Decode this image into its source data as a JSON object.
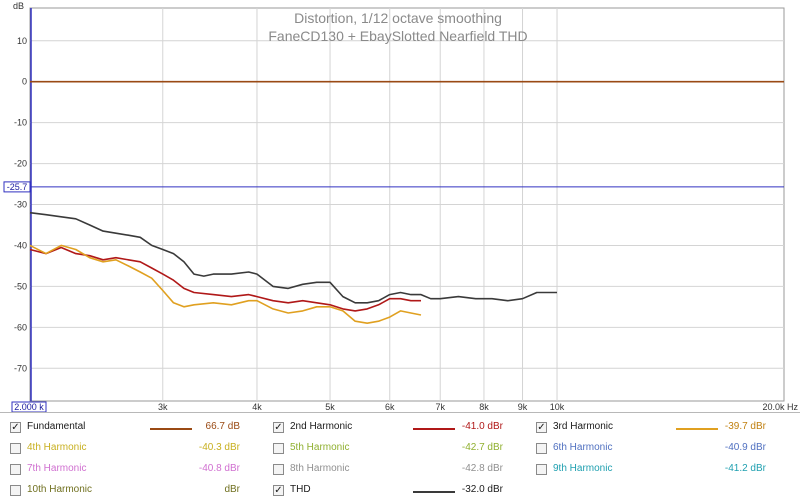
{
  "chart_data": {
    "type": "line",
    "title": "Distortion, 1/12 octave smoothing",
    "subtitle": "FaneCD130 + EbaySlotted Nearfield THD",
    "ylabel": "dB",
    "xlabel": "Hz",
    "x_scale": "log",
    "xlim": [
      2000,
      20000
    ],
    "ylim": [
      -78,
      18
    ],
    "x_ticks": [
      {
        "value": 3000,
        "label": "3k"
      },
      {
        "value": 4000,
        "label": "4k"
      },
      {
        "value": 5000,
        "label": "5k"
      },
      {
        "value": 6000,
        "label": "6k"
      },
      {
        "value": 7000,
        "label": "7k"
      },
      {
        "value": 8000,
        "label": "8k"
      },
      {
        "value": 9000,
        "label": "9k"
      },
      {
        "value": 10000,
        "label": "10k"
      }
    ],
    "x_start_label": "2.000 k",
    "x_end_label": "20.0k Hz",
    "y_ticks": [
      10,
      0,
      -10,
      -20,
      -30,
      -40,
      -50,
      -60,
      -70
    ],
    "cursor": {
      "y": -25.7,
      "label": "-25.7"
    },
    "grid": true,
    "series": [
      {
        "name": "Fundamental",
        "color": "#9a4a14",
        "x": [
          2000,
          20000
        ],
        "y": [
          0,
          0
        ]
      },
      {
        "name": "2nd Harmonic",
        "color": "#b01818",
        "x": [
          2000,
          2100,
          2200,
          2300,
          2400,
          2500,
          2600,
          2700,
          2800,
          2900,
          3000,
          3100,
          3200,
          3300,
          3500,
          3700,
          3900,
          4000,
          4200,
          4400,
          4600,
          4800,
          5000,
          5200,
          5400,
          5600,
          5800,
          6000,
          6200,
          6400,
          6600
        ],
        "y": [
          -41,
          -42,
          -40.5,
          -42,
          -42.5,
          -43.5,
          -43,
          -43.5,
          -44,
          -45.5,
          -47,
          -48.5,
          -50.5,
          -51.5,
          -52,
          -52.5,
          -52,
          -52.5,
          -53.5,
          -54,
          -53.5,
          -54,
          -54.5,
          -55.5,
          -56,
          -55.5,
          -54.5,
          -53,
          -53,
          -53.5,
          -53.5
        ]
      },
      {
        "name": "3rd Harmonic",
        "color": "#e0a020",
        "x": [
          2000,
          2100,
          2200,
          2300,
          2400,
          2500,
          2600,
          2700,
          2800,
          2900,
          3000,
          3100,
          3200,
          3300,
          3500,
          3700,
          3900,
          4000,
          4200,
          4400,
          4600,
          4800,
          5000,
          5200,
          5400,
          5600,
          5800,
          6000,
          6200,
          6400,
          6600
        ],
        "y": [
          -40,
          -42,
          -40,
          -41,
          -43,
          -44,
          -43.5,
          -45,
          -46.5,
          -48,
          -51,
          -54,
          -55,
          -54.5,
          -54,
          -54.5,
          -53.5,
          -53.5,
          -55.5,
          -56.5,
          -56,
          -55,
          -55,
          -56,
          -58.5,
          -59,
          -58.5,
          -57.5,
          -56,
          -56.5,
          -57
        ]
      },
      {
        "name": "THD",
        "color": "#3a3a3a",
        "x": [
          2000,
          2100,
          2200,
          2300,
          2400,
          2500,
          2600,
          2700,
          2800,
          2900,
          3000,
          3100,
          3200,
          3300,
          3400,
          3500,
          3700,
          3900,
          4000,
          4200,
          4400,
          4600,
          4800,
          5000,
          5200,
          5400,
          5600,
          5800,
          6000,
          6200,
          6400,
          6600,
          6800,
          7000,
          7400,
          7800,
          8200,
          8600,
          9000,
          9400,
          10000
        ],
        "y": [
          -32,
          -32.5,
          -33,
          -33.5,
          -35,
          -36.5,
          -37,
          -37.5,
          -38,
          -40,
          -41,
          -42,
          -44,
          -47,
          -47.5,
          -47,
          -47,
          -46.5,
          -47,
          -50,
          -50.5,
          -49.5,
          -49,
          -49,
          -52.5,
          -54,
          -54,
          -53.5,
          -52,
          -51.5,
          -52,
          -52,
          -53,
          -53,
          -52.5,
          -53,
          -53,
          -53.5,
          -53,
          -51.5,
          -51.5
        ]
      }
    ]
  },
  "legend": {
    "items": [
      {
        "label": "Fundamental",
        "checked": true,
        "value": "66.7 dB",
        "color": "#9a4a14",
        "show_line": true
      },
      {
        "label": "2nd Harmonic",
        "checked": true,
        "value": "-41.0 dBr",
        "color": "#b01818",
        "show_line": true
      },
      {
        "label": "3rd Harmonic",
        "checked": true,
        "value": "-39.7 dBr",
        "color": "#e0a020",
        "show_line": true
      },
      {
        "label": "4th Harmonic",
        "checked": false,
        "value": "-40.3 dBr",
        "color": "#c8b020",
        "show_line": false
      },
      {
        "label": "5th Harmonic",
        "checked": false,
        "value": "-42.7 dBr",
        "color": "#90b030",
        "show_line": false
      },
      {
        "label": "6th Harmonic",
        "checked": false,
        "value": "-40.9 dBr",
        "color": "#5070c0",
        "show_line": false
      },
      {
        "label": "7th Harmonic",
        "checked": false,
        "value": "-40.8 dBr",
        "color": "#d070d0",
        "show_line": false
      },
      {
        "label": "8th Harmonic",
        "checked": false,
        "value": "-42.8 dBr",
        "color": "#909090",
        "show_line": false
      },
      {
        "label": "9th Harmonic",
        "checked": false,
        "value": "-41.2 dBr",
        "color": "#20a0b0",
        "show_line": false
      },
      {
        "label": "10th Harmonic",
        "checked": false,
        "value": "dBr",
        "color": "#707020",
        "show_line": false
      },
      {
        "label": "THD",
        "checked": true,
        "value": "-32.0 dBr",
        "color": "#3a3a3a",
        "show_line": true
      }
    ]
  }
}
